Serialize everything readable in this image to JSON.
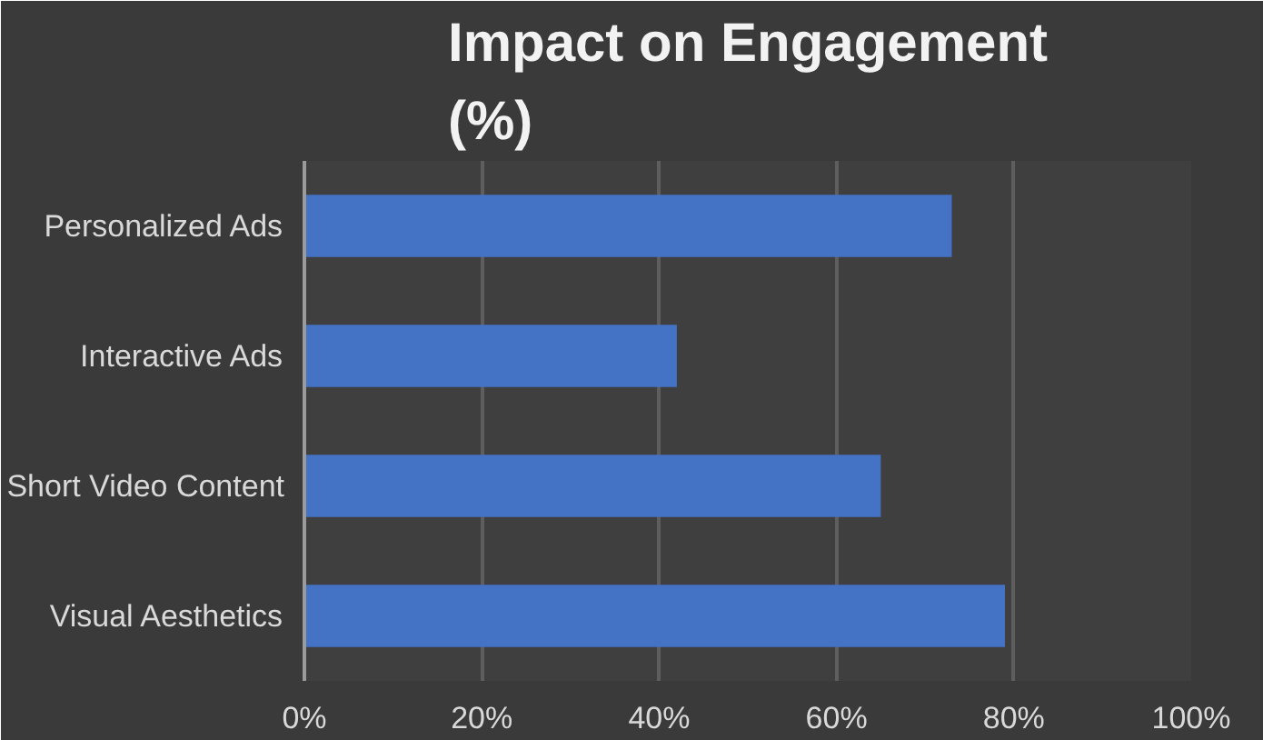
{
  "chart_data": {
    "type": "bar",
    "orientation": "horizontal",
    "title": "Impact on Engagement\n(%)",
    "categories": [
      "Personalized Ads",
      "Interactive Ads",
      "Short Video Content",
      "Visual Aesthetics"
    ],
    "values": [
      73,
      42,
      65,
      79
    ],
    "color": "#4472c4",
    "xlim": [
      0,
      100
    ],
    "xticks": [
      {
        "value": 0,
        "label": "0%"
      },
      {
        "value": 20,
        "label": "20%"
      },
      {
        "value": 40,
        "label": "40%"
      },
      {
        "value": 60,
        "label": "60%"
      },
      {
        "value": 80,
        "label": "80%"
      },
      {
        "value": 100,
        "label": "100%"
      }
    ],
    "grid": "x"
  }
}
